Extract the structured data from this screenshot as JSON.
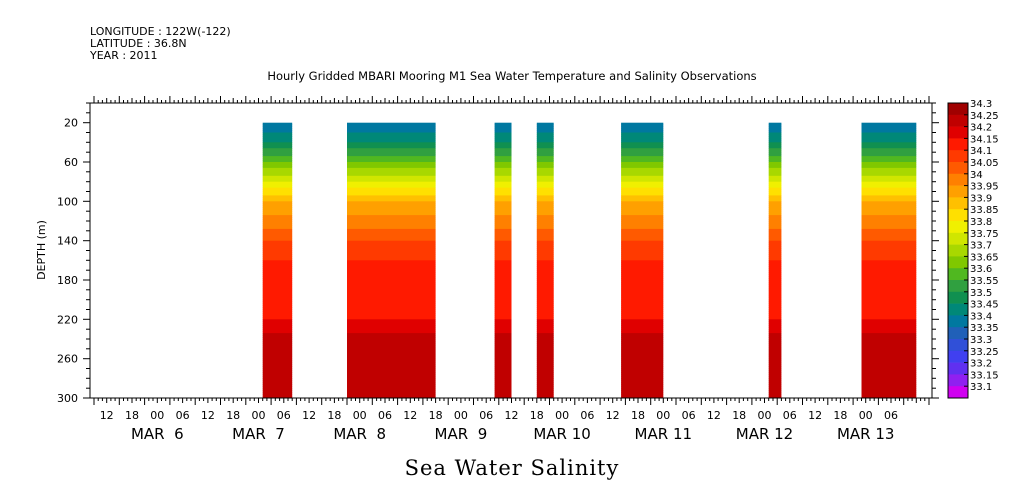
{
  "header": {
    "longitude": "LONGITUDE : 122W(-122)",
    "latitude": "LATITUDE : 36.8N",
    "year": "YEAR : 2011"
  },
  "chart_data": {
    "type": "heatmap",
    "title": "Hourly Gridded MBARI Mooring M1 Sea Water Temperature and Salinity Observations",
    "xlabel": "Sea Water Salinity",
    "ylabel": "DEPTH (m)",
    "y_ticks": [
      20,
      60,
      100,
      140,
      180,
      220,
      260,
      300
    ],
    "ylim": [
      0,
      300
    ],
    "y_reversed": true,
    "x_hour_ticks": [
      "12",
      "18",
      "00",
      "06",
      "12",
      "18",
      "00",
      "06",
      "12",
      "18",
      "00",
      "06",
      "12",
      "18",
      "00",
      "06",
      "12",
      "18",
      "00",
      "06",
      "12",
      "18",
      "00",
      "06",
      "12",
      "18",
      "00",
      "06",
      "12",
      "18",
      "00",
      "06"
    ],
    "x_date_labels": [
      "MAR  6",
      "MAR  7",
      "MAR  8",
      "MAR  9",
      "MAR 10",
      "MAR 11",
      "MAR 12",
      "MAR 13"
    ],
    "time_range_hours": [
      0,
      198
    ],
    "observation_segments_hours": [
      [
        40,
        47
      ],
      [
        60,
        81
      ],
      [
        95,
        99
      ],
      [
        105,
        109
      ],
      [
        125,
        135
      ],
      [
        160,
        163
      ],
      [
        182,
        195
      ]
    ],
    "depth_profile_depths_m": [
      20,
      40,
      60,
      80,
      100,
      120,
      140,
      160,
      180,
      200,
      220,
      240,
      260,
      280,
      300
    ],
    "depth_profile_salinity": [
      33.35,
      33.45,
      33.6,
      33.75,
      33.9,
      33.97,
      34.05,
      34.1,
      34.12,
      34.13,
      34.15,
      34.22,
      34.25,
      34.23,
      34.2
    ],
    "colorbar": {
      "levels": [
        "34.3",
        "34.25",
        "34.2",
        "34.15",
        "34.1",
        "34.05",
        "34",
        "33.95",
        "33.9",
        "33.85",
        "33.8",
        "33.75",
        "33.7",
        "33.65",
        "33.6",
        "33.55",
        "33.5",
        "33.45",
        "33.4",
        "33.35",
        "33.3",
        "33.25",
        "33.2",
        "33.15",
        "33.1"
      ],
      "colors": [
        "#a00000",
        "#c00000",
        "#e00000",
        "#ff1a00",
        "#ff3a00",
        "#ff5a00",
        "#ff8000",
        "#ffa000",
        "#ffc000",
        "#ffe000",
        "#f0f000",
        "#d0e600",
        "#a8d800",
        "#80c800",
        "#50b820",
        "#30a040",
        "#109050",
        "#008878",
        "#0078a0",
        "#2060b8",
        "#3050d8",
        "#4040f0",
        "#6030f0",
        "#9020f0",
        "#d000f0"
      ]
    }
  }
}
